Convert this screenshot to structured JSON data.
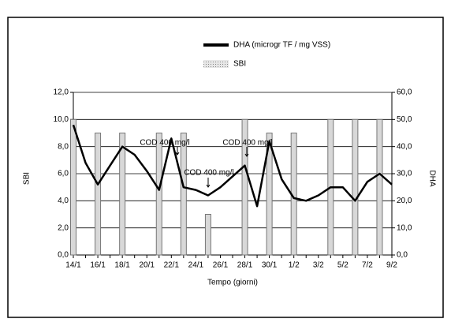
{
  "chart_data": {
    "type": "bar-line",
    "xlabel": "Tempo (giorni)",
    "ylabel": "SBI",
    "y2label": "DHA",
    "categories": [
      "14/1",
      null,
      "16/1",
      null,
      "18/1",
      null,
      "20/1",
      null,
      "22/1",
      null,
      "24/1",
      null,
      "26/1",
      null,
      "28/1",
      null,
      "30/1",
      null,
      "1/2",
      null,
      "3/2",
      null,
      "5/2",
      null,
      "7/2",
      null,
      "9/2"
    ],
    "series": [
      {
        "name": "SBI",
        "type": "bar",
        "color": "#d8d8d8",
        "values": [
          10,
          null,
          9,
          null,
          9,
          null,
          null,
          9,
          null,
          9,
          null,
          3,
          null,
          null,
          10,
          null,
          9,
          null,
          9,
          null,
          null,
          10,
          null,
          10,
          null,
          10,
          null
        ]
      },
      {
        "name": "DHA (microgr TF / mg VSS)",
        "type": "line",
        "axis": "y2",
        "color": "#000000",
        "values": [
          48,
          34,
          26,
          33,
          40,
          37,
          31,
          24,
          43,
          25,
          24,
          22,
          25,
          29,
          33,
          18,
          42,
          28,
          21,
          20,
          22,
          25,
          25,
          20,
          27,
          30,
          26
        ]
      }
    ],
    "ylim": [
      0,
      12
    ],
    "yticks": [
      {
        "value": 0,
        "label": "0,0"
      },
      {
        "value": 2,
        "label": "2,0"
      },
      {
        "value": 4,
        "label": "4,0"
      },
      {
        "value": 6,
        "label": "6,0"
      },
      {
        "value": 8,
        "label": "8,0"
      },
      {
        "value": 10,
        "label": "10,0"
      },
      {
        "value": 12,
        "label": "12,0"
      }
    ],
    "y2lim": [
      0,
      60
    ],
    "y2ticks": [
      {
        "value": 0,
        "label": "0,0"
      },
      {
        "value": 10,
        "label": "10,0"
      },
      {
        "value": 20,
        "label": "20,0"
      },
      {
        "value": 30,
        "label": "30,0"
      },
      {
        "value": 40,
        "label": "40,0"
      },
      {
        "value": 50,
        "label": "50,0"
      },
      {
        "value": 60,
        "label": "60,0"
      }
    ],
    "grid": true,
    "annotations": [
      "COD 400 mg/l",
      "COD 400 mg/l",
      "COD 400 mg/l"
    ]
  }
}
